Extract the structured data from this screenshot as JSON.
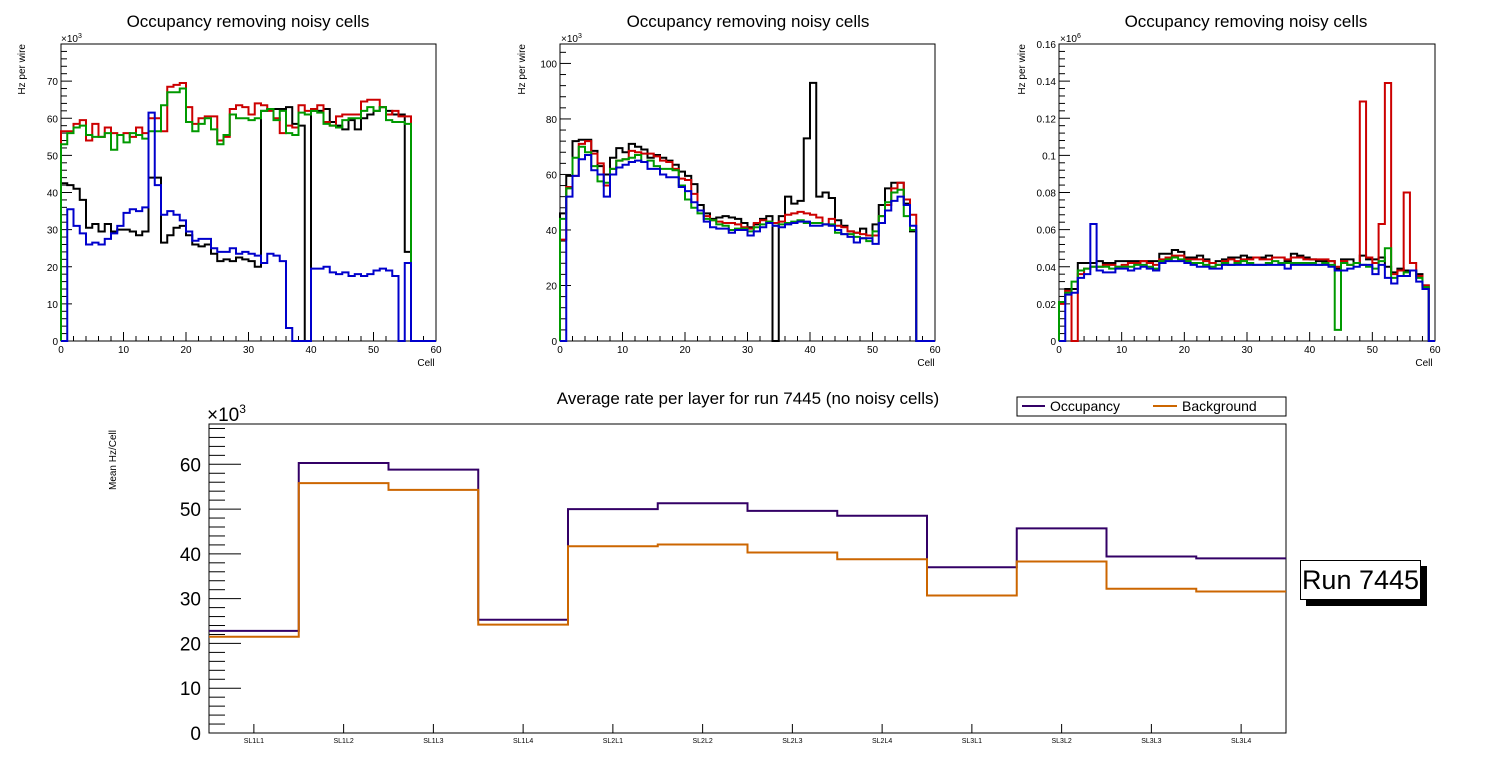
{
  "panels": [
    {
      "title": "Occupancy removing noisy cells",
      "xlabel": "Cell",
      "ylabel": "Hz per wire",
      "exponent_label": "×10",
      "exponent": "3",
      "xlim": [
        0,
        60
      ],
      "ylim": [
        0,
        80
      ],
      "xticks": [
        0,
        10,
        20,
        30,
        40,
        50,
        60
      ],
      "yticks": [
        0,
        10,
        20,
        30,
        40,
        50,
        60,
        70
      ],
      "ytick_labels": [
        "0",
        "10",
        "20",
        "30",
        "40",
        "50",
        "60",
        "70"
      ]
    },
    {
      "title": "Occupancy removing noisy cells",
      "xlabel": "Cell",
      "ylabel": "Hz per wire",
      "exponent_label": "×10",
      "exponent": "3",
      "xlim": [
        0,
        60
      ],
      "ylim": [
        0,
        107
      ],
      "xticks": [
        0,
        10,
        20,
        30,
        40,
        50,
        60
      ],
      "yticks": [
        0,
        20,
        40,
        60,
        80,
        100
      ],
      "ytick_labels": [
        "0",
        "20",
        "40",
        "60",
        "80",
        "100"
      ]
    },
    {
      "title": "Occupancy removing noisy cells",
      "xlabel": "Cell",
      "ylabel": "Hz per wire",
      "exponent_label": "×10",
      "exponent": "6",
      "xlim": [
        0,
        60
      ],
      "ylim": [
        0,
        0.16
      ],
      "xticks": [
        0,
        10,
        20,
        30,
        40,
        50,
        60
      ],
      "yticks": [
        0,
        0.02,
        0.04,
        0.06,
        0.08,
        0.1,
        0.12,
        0.14,
        0.16
      ],
      "ytick_labels": [
        "0",
        "0.02",
        "0.04",
        "0.06",
        "0.08",
        "0.1",
        "0.12",
        "0.14",
        "0.16"
      ]
    },
    {
      "title": "Average rate per layer for run 7445 (no noisy cells)",
      "ylabel": "Mean Hz/Cell",
      "exponent_label": "×10",
      "exponent": "3",
      "ylim": [
        0,
        69
      ],
      "yticks": [
        0,
        10,
        20,
        30,
        40,
        50,
        60
      ],
      "ytick_labels": [
        "0",
        "10",
        "20",
        "30",
        "40",
        "50",
        "60"
      ],
      "legend": [
        {
          "label": "Occupancy",
          "color": "#330066"
        },
        {
          "label": "Background",
          "color": "#cc6600"
        }
      ],
      "run_label": "Run 7445"
    }
  ],
  "chart_data": [
    {
      "type": "line",
      "subtype": "step-histogram",
      "title": "Occupancy removing noisy cells",
      "xlabel": "Cell",
      "ylabel": "Hz per wire (×10^3)",
      "xlim": [
        0,
        60
      ],
      "ylim": [
        0,
        80
      ],
      "bin_width": 1,
      "series": [
        {
          "name": "black",
          "color": "#000000",
          "values": [
            42.5,
            42,
            41,
            38,
            30.5,
            31.5,
            29.5,
            31.5,
            29.5,
            30,
            30,
            29.5,
            28.5,
            29.5,
            44,
            44,
            26.5,
            28.5,
            30.5,
            31,
            28.5,
            26,
            25.5,
            26,
            23.5,
            21.5,
            22,
            21.5,
            22.5,
            22,
            21.5,
            20,
            62,
            62.5,
            62.5,
            62.5,
            63,
            58.5,
            58,
            0,
            62,
            62,
            62.5,
            59,
            58,
            57,
            59.5,
            57,
            60,
            61,
            62,
            63,
            62,
            61,
            61,
            24,
            0,
            0,
            0,
            0
          ]
        },
        {
          "name": "red",
          "color": "#cc0000",
          "values": [
            56.5,
            56.5,
            58.5,
            59.5,
            54,
            58.5,
            55,
            57.5,
            56,
            55.5,
            56,
            55,
            57.5,
            56,
            60,
            60,
            56.5,
            68.5,
            69,
            69.5,
            63,
            58.5,
            60,
            60.5,
            60.5,
            54,
            55,
            62.5,
            63.5,
            63,
            61,
            64,
            63.5,
            62,
            60,
            56,
            58,
            57.5,
            63.5,
            62,
            62.5,
            63.5,
            59,
            58,
            60.5,
            61,
            61,
            61,
            64.5,
            65,
            65,
            63,
            61,
            62,
            60.5,
            60.5,
            0,
            0,
            0,
            0
          ]
        },
        {
          "name": "green",
          "color": "#009900",
          "values": [
            53,
            56,
            57.5,
            58,
            55.5,
            55,
            55,
            56,
            51.5,
            55.5,
            53.5,
            56,
            55.5,
            54.5,
            56.5,
            56.5,
            63.5,
            67,
            67,
            68,
            59,
            56.5,
            58.5,
            60,
            57,
            53,
            55.5,
            61,
            60,
            60,
            59.5,
            60,
            62,
            62.5,
            59.5,
            62,
            56,
            55.5,
            61.5,
            61,
            62,
            61.5,
            58.5,
            58,
            57.5,
            59.5,
            60,
            60,
            62,
            63,
            62,
            63,
            59.5,
            59,
            59,
            58.5,
            0,
            0,
            0,
            0
          ]
        },
        {
          "name": "blue",
          "color": "#0000cc",
          "values": [
            0,
            35.5,
            31,
            29,
            26,
            26.5,
            26,
            27.5,
            29,
            31,
            34.5,
            35.5,
            35,
            36,
            61.5,
            42,
            34,
            35,
            34,
            32.5,
            29.5,
            27,
            27.5,
            27.5,
            25,
            24,
            24,
            25,
            23.5,
            24,
            23.5,
            23,
            21,
            23.5,
            23,
            21.5,
            3.5,
            0,
            0,
            0,
            19.5,
            19.5,
            20,
            18.5,
            18,
            18.5,
            17.5,
            18,
            17.5,
            18,
            19,
            19.5,
            19,
            17.5,
            0,
            21,
            0,
            0,
            0,
            0
          ]
        }
      ]
    },
    {
      "type": "line",
      "subtype": "step-histogram",
      "title": "Occupancy removing noisy cells",
      "xlabel": "Cell",
      "ylabel": "Hz per wire (×10^3)",
      "xlim": [
        0,
        60
      ],
      "ylim": [
        0,
        107
      ],
      "bin_width": 1,
      "series": [
        {
          "name": "black",
          "color": "#000000",
          "values": [
            46,
            59.5,
            72,
            72.5,
            72.5,
            68.5,
            63,
            60,
            66,
            69.5,
            68,
            71,
            70,
            69,
            66,
            67,
            66,
            65,
            63.5,
            61,
            59.5,
            56.5,
            49,
            46,
            44,
            44.5,
            45,
            44.5,
            44,
            42.5,
            41,
            42,
            44,
            45,
            0,
            45,
            52,
            49.5,
            50.5,
            73,
            93,
            52,
            53.5,
            51.5,
            43.5,
            41.5,
            39.5,
            39,
            40.5,
            38,
            42,
            49,
            55,
            57,
            57,
            49.5,
            39.5,
            0,
            0,
            0
          ]
        },
        {
          "name": "red",
          "color": "#cc0000",
          "values": [
            36.5,
            55.5,
            59.5,
            71,
            72,
            67.5,
            64,
            56,
            62,
            65,
            65.5,
            68.5,
            68,
            67.5,
            67.5,
            66.5,
            65,
            64.5,
            62,
            58.5,
            58,
            53,
            47,
            45,
            43.5,
            43,
            42.5,
            42.5,
            42,
            41,
            40.5,
            42.5,
            43.5,
            43,
            42.5,
            43,
            45.5,
            46,
            46.5,
            46,
            45.5,
            44.5,
            42,
            44,
            41.5,
            41,
            39.5,
            39,
            38.5,
            38,
            38,
            45,
            49,
            55,
            57,
            51,
            45.5,
            0,
            0,
            0
          ]
        },
        {
          "name": "green",
          "color": "#009900",
          "values": [
            44,
            55,
            66,
            70,
            68,
            63,
            57.5,
            57,
            62,
            65,
            65.5,
            66,
            67,
            64.5,
            65,
            63,
            62,
            62,
            61.5,
            56,
            51,
            48,
            46,
            44,
            43.5,
            42,
            41.5,
            40,
            40.5,
            40.5,
            39.5,
            41,
            42,
            43,
            41.5,
            42,
            42.5,
            43,
            43.5,
            42.5,
            42.5,
            42.5,
            42,
            42,
            39,
            38.5,
            38.5,
            37.5,
            37,
            36,
            39.5,
            45,
            50,
            53.5,
            54.5,
            45,
            40,
            0,
            0,
            0
          ]
        },
        {
          "name": "blue",
          "color": "#0000cc",
          "values": [
            0,
            52,
            59.5,
            65.5,
            67,
            61.5,
            60,
            52,
            60,
            62.5,
            63.5,
            64.5,
            65,
            64.5,
            62,
            62,
            60,
            59,
            59,
            55.5,
            54,
            50,
            47,
            43,
            41,
            40.5,
            40.5,
            39,
            40,
            40,
            38,
            39.5,
            41,
            42.5,
            41.5,
            41,
            42,
            42.5,
            43,
            43,
            41.5,
            41.5,
            42,
            41.5,
            40,
            38.5,
            37.5,
            35.5,
            37,
            37,
            35,
            42.5,
            47,
            50.5,
            52,
            49,
            41.5,
            0,
            0,
            0
          ]
        }
      ]
    },
    {
      "type": "line",
      "subtype": "step-histogram",
      "title": "Occupancy removing noisy cells",
      "xlabel": "Cell",
      "ylabel": "Hz per wire (×10^6)",
      "xlim": [
        0,
        60
      ],
      "ylim": [
        0,
        0.16
      ],
      "bin_width": 1,
      "series": [
        {
          "name": "black",
          "color": "#000000",
          "values": [
            0.021,
            0.028,
            0.028,
            0.042,
            0.042,
            0.042,
            0.043,
            0.042,
            0.042,
            0.043,
            0.043,
            0.043,
            0.043,
            0.043,
            0.043,
            0.043,
            0.047,
            0.047,
            0.049,
            0.048,
            0.045,
            0.045,
            0.046,
            0.044,
            0.042,
            0.043,
            0.044,
            0.045,
            0.045,
            0.046,
            0.045,
            0.045,
            0.045,
            0.046,
            0.045,
            0.045,
            0.043,
            0.047,
            0.046,
            0.045,
            0.044,
            0.043,
            0.043,
            0.043,
            0.039,
            0.044,
            0.044,
            0.042,
            0.046,
            0.044,
            0.044,
            0.045,
            0.04,
            0.037,
            0.039,
            0.038,
            0.038,
            0.036,
            0.03,
            0
          ]
        },
        {
          "name": "red",
          "color": "#cc0000",
          "values": [
            0.02,
            0.027,
            0,
            0.036,
            0.039,
            0.04,
            0.04,
            0.041,
            0.041,
            0.04,
            0.041,
            0.042,
            0.042,
            0.043,
            0.042,
            0.041,
            0.044,
            0.045,
            0.046,
            0.046,
            0.044,
            0.044,
            0.044,
            0.043,
            0.042,
            0.041,
            0.043,
            0.044,
            0.043,
            0.044,
            0.044,
            0.045,
            0.044,
            0.044,
            0.045,
            0.045,
            0.044,
            0.045,
            0.045,
            0.044,
            0.044,
            0.044,
            0.044,
            0.043,
            0.04,
            0.043,
            0.041,
            0.042,
            0.129,
            0.045,
            0.042,
            0.063,
            0.139,
            0.036,
            0.038,
            0.08,
            0.042,
            0.035,
            0.03,
            0
          ]
        },
        {
          "name": "green",
          "color": "#009900",
          "values": [
            0.021,
            0.026,
            0.032,
            0.038,
            0.039,
            0.04,
            0.04,
            0.04,
            0.039,
            0.04,
            0.04,
            0.04,
            0.041,
            0.041,
            0.04,
            0.039,
            0.043,
            0.044,
            0.045,
            0.044,
            0.043,
            0.042,
            0.042,
            0.041,
            0.04,
            0.041,
            0.042,
            0.041,
            0.042,
            0.043,
            0.042,
            0.041,
            0.041,
            0.042,
            0.043,
            0.042,
            0.042,
            0.042,
            0.042,
            0.042,
            0.042,
            0.041,
            0.042,
            0.041,
            0.006,
            0.042,
            0.041,
            0.042,
            0.041,
            0.04,
            0.039,
            0.043,
            0.05,
            0.034,
            0.035,
            0.037,
            0.038,
            0.034,
            0.029,
            0
          ]
        },
        {
          "name": "blue",
          "color": "#0000cc",
          "values": [
            0,
            0.025,
            0.026,
            0.034,
            0.036,
            0.063,
            0.038,
            0.037,
            0.037,
            0.039,
            0.039,
            0.038,
            0.039,
            0.04,
            0.039,
            0.038,
            0.042,
            0.043,
            0.043,
            0.043,
            0.042,
            0.041,
            0.04,
            0.04,
            0.039,
            0.039,
            0.041,
            0.041,
            0.041,
            0.041,
            0.041,
            0.041,
            0.041,
            0.041,
            0.041,
            0.041,
            0.039,
            0.041,
            0.041,
            0.041,
            0.041,
            0.041,
            0.041,
            0.04,
            0.038,
            0.038,
            0.039,
            0.04,
            0.041,
            0.041,
            0.036,
            0.041,
            0.034,
            0.031,
            0.035,
            0.035,
            0.038,
            0.032,
            0.028,
            0
          ]
        }
      ]
    },
    {
      "type": "line",
      "subtype": "step-histogram",
      "title": "Average rate per layer for run 7445 (no noisy cells)",
      "xlabel": "",
      "ylabel": "Mean Hz/Cell (×10^3)",
      "ylim": [
        0,
        69
      ],
      "categories": [
        "SL1L1",
        "SL1L2",
        "SL1L3",
        "SL1L4",
        "SL2L1",
        "SL2L2",
        "SL2L3",
        "SL2L4",
        "SL3L1",
        "SL3L2",
        "SL3L3",
        "SL3L4"
      ],
      "legend_position": "top-right",
      "series": [
        {
          "name": "Occupancy",
          "color": "#330066",
          "values": [
            22.8,
            60.3,
            58.8,
            25.3,
            50.0,
            51.3,
            49.6,
            48.5,
            37.0,
            45.7,
            39.4,
            39.0
          ]
        },
        {
          "name": "Background",
          "color": "#cc6600",
          "values": [
            21.5,
            55.8,
            54.3,
            24.2,
            41.7,
            42.1,
            40.3,
            38.8,
            30.7,
            38.3,
            32.2,
            31.6
          ]
        }
      ]
    }
  ]
}
